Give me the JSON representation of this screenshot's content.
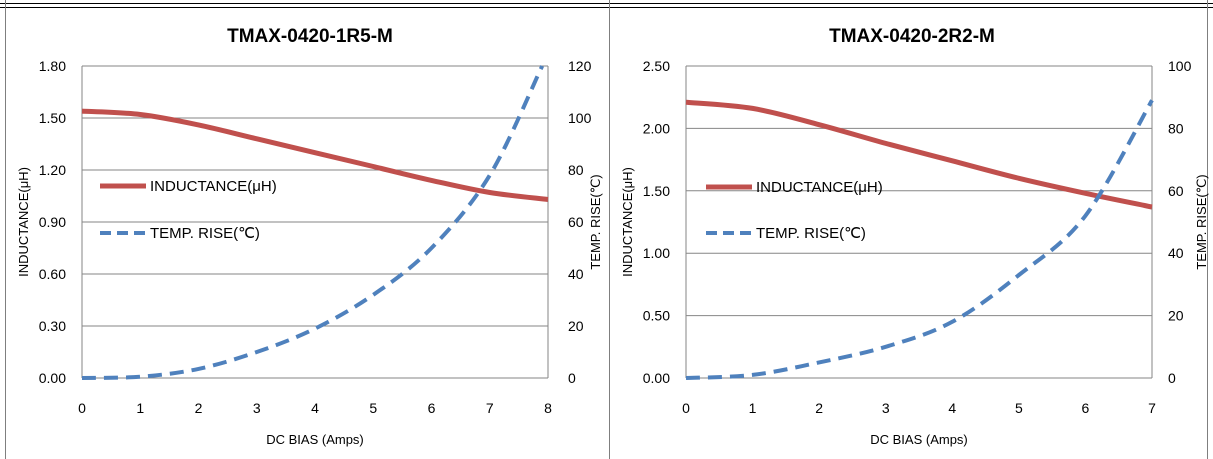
{
  "chart_data": [
    {
      "type": "line",
      "title": "TMAX-0420-1R5-M",
      "xlabel": "DC BIAS  (Amps)",
      "ylabel": "INDUCTANCE(μH)",
      "y2label": "TEMP. RISE(℃)",
      "x_ticks": [
        "0",
        "1",
        "2",
        "3",
        "4",
        "5",
        "6",
        "7",
        "8"
      ],
      "y_ticks": [
        "0.00",
        "0.30",
        "0.60",
        "0.90",
        "1.20",
        "1.50",
        "1.80"
      ],
      "y2_ticks": [
        "0",
        "20",
        "40",
        "60",
        "80",
        "100",
        "120"
      ],
      "xlim": [
        0,
        8
      ],
      "ylim": [
        0,
        1.8
      ],
      "y2lim": [
        0,
        120
      ],
      "grid": "horizontal",
      "legend": "left",
      "series": [
        {
          "name": "INDUCTANCE(μH)",
          "axis": "left",
          "color": "#c0504d",
          "style": "solid",
          "x": [
            0,
            1,
            2,
            3,
            4,
            5,
            6,
            7,
            8
          ],
          "values": [
            1.54,
            1.52,
            1.46,
            1.38,
            1.3,
            1.22,
            1.14,
            1.07,
            1.03
          ]
        },
        {
          "name": "TEMP. RISE(℃)",
          "axis": "right",
          "color": "#4f81bd",
          "style": "dashed",
          "x": [
            0,
            1,
            2,
            3,
            4,
            5,
            6,
            7,
            7.9
          ],
          "values": [
            0,
            0.5,
            3.5,
            10,
            19,
            32,
            50,
            78,
            120
          ]
        }
      ]
    },
    {
      "type": "line",
      "title": "TMAX-0420-2R2-M",
      "xlabel": "DC BIAS  (Amps)",
      "ylabel": "INDUCTANCE(μH)",
      "y2label": "TEMP. RISE(℃)",
      "x_ticks": [
        "0",
        "1",
        "2",
        "3",
        "4",
        "5",
        "6",
        "7"
      ],
      "y_ticks": [
        "0.00",
        "0.50",
        "1.00",
        "1.50",
        "2.00",
        "2.50"
      ],
      "y2_ticks": [
        "0",
        "20",
        "40",
        "60",
        "80",
        "100"
      ],
      "xlim": [
        0,
        7
      ],
      "ylim": [
        0,
        2.5
      ],
      "y2lim": [
        0,
        100
      ],
      "grid": "horizontal",
      "legend": "left",
      "series": [
        {
          "name": "INDUCTANCE(μH)",
          "axis": "left",
          "color": "#c0504d",
          "style": "solid",
          "x": [
            0,
            1,
            2,
            3,
            4,
            5,
            6,
            7
          ],
          "values": [
            2.21,
            2.16,
            2.03,
            1.88,
            1.74,
            1.6,
            1.48,
            1.37
          ]
        },
        {
          "name": "TEMP. RISE(℃)",
          "axis": "right",
          "color": "#4f81bd",
          "style": "dashed",
          "x": [
            0,
            1,
            2,
            3,
            4,
            5,
            6,
            7
          ],
          "values": [
            0,
            1,
            5,
            10,
            18,
            33,
            52,
            89
          ]
        }
      ]
    }
  ]
}
